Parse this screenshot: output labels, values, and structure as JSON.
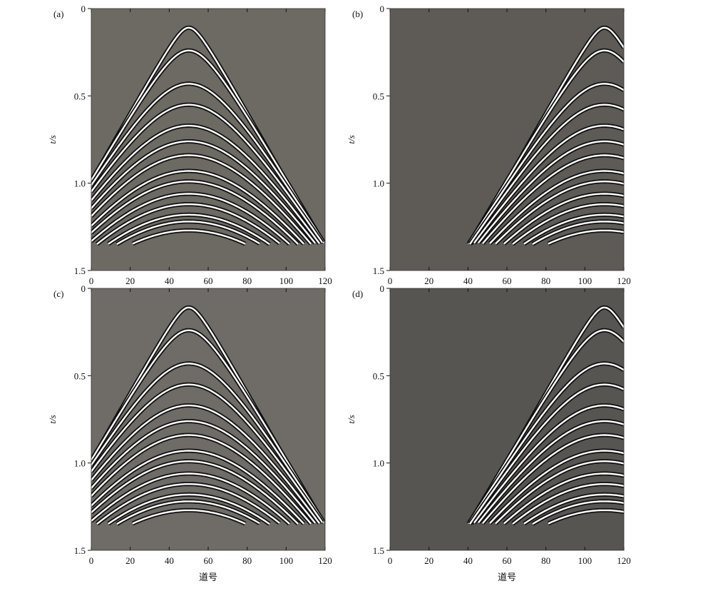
{
  "chart_data": [
    {
      "type": "seismic",
      "panel_label": "(a)",
      "ylabel": "t/s",
      "xlim": [
        0,
        120
      ],
      "xticks": [
        0,
        20,
        40,
        60,
        80,
        100,
        120
      ],
      "ylim": [
        0,
        1.5
      ],
      "y_inverted": true,
      "yticks": [
        0,
        0.5,
        {
          "value": 1,
          "label": "1.0"
        },
        1.5
      ]
    },
    {
      "type": "seismic",
      "panel_label": "(b)",
      "ylabel": "t/s",
      "xlim": [
        0,
        120
      ],
      "xticks": [
        0,
        20,
        40,
        60,
        80,
        100,
        120
      ],
      "ylim": [
        0,
        1.5
      ],
      "y_inverted": true,
      "yticks": [
        0,
        0.5,
        {
          "value": 1,
          "label": "1.0"
        },
        1.5
      ]
    },
    {
      "type": "seismic",
      "panel_label": "(c)",
      "ylabel": "t/s",
      "xlabel": "道号",
      "xlim": [
        0,
        120
      ],
      "xticks": [
        0,
        20,
        40,
        60,
        80,
        100,
        120
      ],
      "ylim": [
        0,
        1.5
      ],
      "y_inverted": true,
      "yticks": [
        0,
        0.5,
        {
          "value": 1,
          "label": "1.0"
        },
        1.5
      ]
    },
    {
      "type": "seismic",
      "panel_label": "(d)",
      "ylabel": "t/s",
      "xlabel": "道号",
      "xlim": [
        0,
        120
      ],
      "xticks": [
        0,
        20,
        40,
        60,
        80,
        100,
        120
      ],
      "ylim": [
        0,
        1.5
      ],
      "y_inverted": true,
      "yticks": [
        0,
        0.5,
        {
          "value": 1,
          "label": "1.0"
        },
        1.5
      ]
    }
  ]
}
